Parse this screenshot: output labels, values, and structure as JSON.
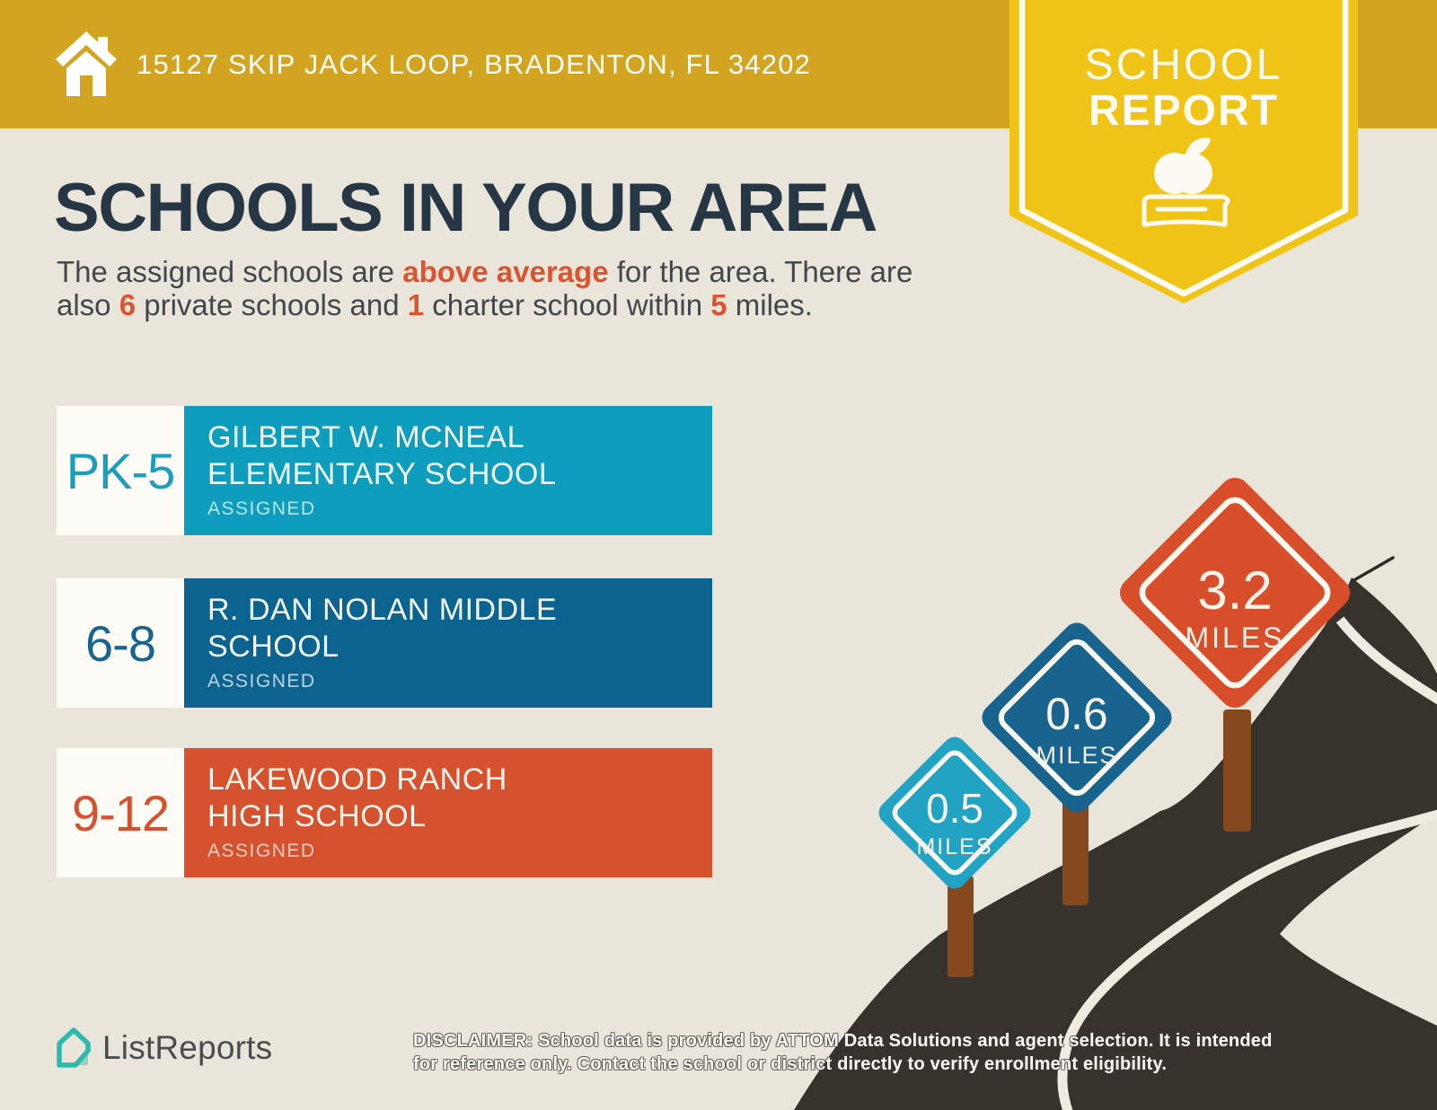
{
  "page": {
    "background_color": "#E9E5DB"
  },
  "header": {
    "address": "15127 SKIP JACK LOOP, BRADENTON, FL 34202",
    "bar_color": "#D3A322",
    "home_icon": "home-icon"
  },
  "badge": {
    "line1": "SCHOOL",
    "line2": "REPORT",
    "color": "#EFC417",
    "icons": [
      "apple-icon",
      "book-icon"
    ]
  },
  "main": {
    "title": "SCHOOLS IN YOUR AREA",
    "accent_color": "#DC5330",
    "subtitle_parts": [
      {
        "text": "The assigned schools are "
      },
      {
        "text": "above average",
        "accent": true
      },
      {
        "text": " for the area. There are"
      },
      {
        "br": true
      },
      {
        "text": "also "
      },
      {
        "text": "6",
        "accent": true
      },
      {
        "text": " private schools and "
      },
      {
        "text": "1",
        "accent": true
      },
      {
        "text": " charter school within "
      },
      {
        "text": "5",
        "accent": true
      },
      {
        "text": " miles."
      }
    ]
  },
  "schools": [
    {
      "grade": "PK-5",
      "name": [
        "GILBERT W. MCNEAL",
        "ELEMENTARY SCHOOL"
      ],
      "status": "ASSIGNED",
      "color": "#0F9DBE",
      "grade_color": "#1B9DBD"
    },
    {
      "grade": "6-8",
      "name": [
        "R. DAN NOLAN MIDDLE",
        "SCHOOL"
      ],
      "status": "ASSIGNED",
      "color": "#0D6390",
      "grade_color": "#19648F"
    },
    {
      "grade": "9-12",
      "name": [
        "LAKEWOOD RANCH",
        "HIGH SCHOOL"
      ],
      "status": "ASSIGNED",
      "color": "#D6512D",
      "grade_color": "#D6512D"
    }
  ],
  "signs": [
    {
      "distance": "0.5",
      "unit": "MILES",
      "color": "#23A3C4"
    },
    {
      "distance": "0.6",
      "unit": "MILES",
      "color": "#19648F"
    },
    {
      "distance": "3.2",
      "unit": "MILES",
      "color": "#D84E2B"
    }
  ],
  "illustration": {
    "road_color": "#38322C",
    "center_line_color": "#EFEBE1",
    "post_color": "#85491D"
  },
  "footer": {
    "brand": "ListReports",
    "brand_color": "#2CB9AE",
    "disclaimer_label": "DISCLAIMER:",
    "disclaimer_line1": " School data is provided by ATTOM Data Solutions and agent selection. It is intended",
    "disclaimer_line2": "for reference only. Contact the school or district directly to verify enrollment eligibility."
  }
}
